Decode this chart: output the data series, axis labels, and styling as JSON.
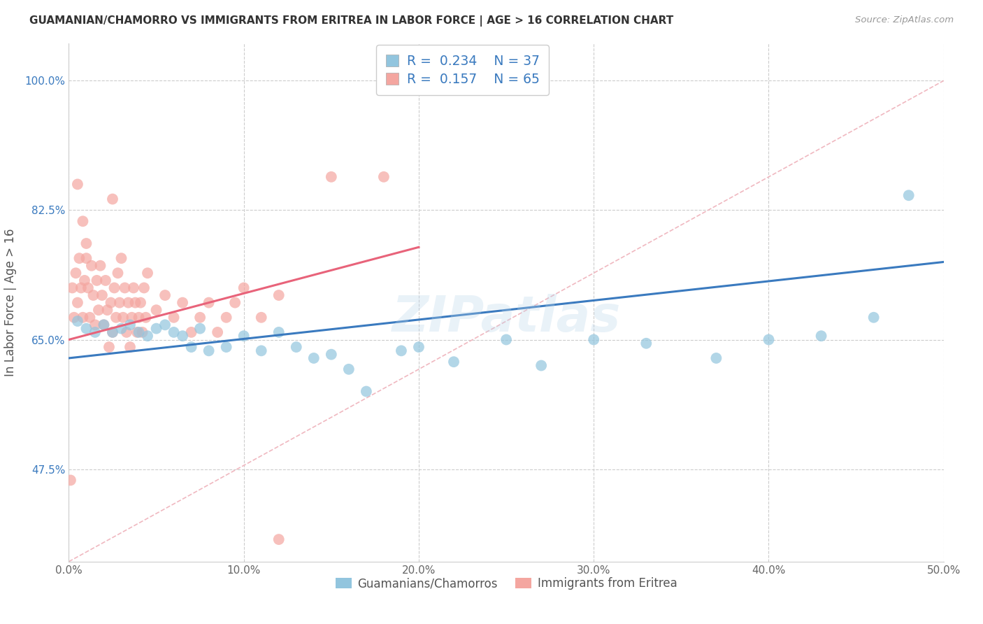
{
  "title": "GUAMANIAN/CHAMORRO VS IMMIGRANTS FROM ERITREA IN LABOR FORCE | AGE > 16 CORRELATION CHART",
  "source": "Source: ZipAtlas.com",
  "xlabel_blue": "Guamanians/Chamorros",
  "xlabel_pink": "Immigrants from Eritrea",
  "ylabel": "In Labor Force | Age > 16",
  "xmin": 0.0,
  "xmax": 0.5,
  "ymin": 0.35,
  "ymax": 1.05,
  "yticks": [
    0.475,
    0.65,
    0.825,
    1.0
  ],
  "ytick_labels": [
    "47.5%",
    "65.0%",
    "82.5%",
    "100.0%"
  ],
  "xticks": [
    0.0,
    0.1,
    0.2,
    0.3,
    0.4,
    0.5
  ],
  "xtick_labels": [
    "0.0%",
    "10.0%",
    "20.0%",
    "30.0%",
    "40.0%",
    "50.0%"
  ],
  "R_blue": 0.234,
  "N_blue": 37,
  "R_pink": 0.157,
  "N_pink": 65,
  "blue_color": "#92c5de",
  "pink_color": "#f4a6a0",
  "blue_line_color": "#3a7abf",
  "pink_line_color": "#e8637a",
  "diag_line_color": "#f0b8c0",
  "watermark": "ZIPatlas",
  "blue_x": [
    0.005,
    0.01,
    0.015,
    0.02,
    0.025,
    0.03,
    0.035,
    0.04,
    0.045,
    0.05,
    0.055,
    0.06,
    0.065,
    0.07,
    0.075,
    0.08,
    0.09,
    0.1,
    0.11,
    0.12,
    0.13,
    0.14,
    0.15,
    0.16,
    0.17,
    0.19,
    0.2,
    0.22,
    0.25,
    0.27,
    0.3,
    0.33,
    0.37,
    0.4,
    0.43,
    0.46,
    0.48
  ],
  "blue_y": [
    0.675,
    0.665,
    0.66,
    0.67,
    0.66,
    0.665,
    0.67,
    0.66,
    0.655,
    0.665,
    0.67,
    0.66,
    0.655,
    0.64,
    0.665,
    0.635,
    0.64,
    0.655,
    0.635,
    0.66,
    0.64,
    0.625,
    0.63,
    0.61,
    0.58,
    0.635,
    0.64,
    0.62,
    0.65,
    0.615,
    0.65,
    0.645,
    0.625,
    0.65,
    0.655,
    0.68,
    0.845
  ],
  "pink_x": [
    0.001,
    0.002,
    0.003,
    0.004,
    0.005,
    0.006,
    0.007,
    0.008,
    0.009,
    0.01,
    0.011,
    0.012,
    0.013,
    0.014,
    0.015,
    0.016,
    0.017,
    0.018,
    0.019,
    0.02,
    0.021,
    0.022,
    0.023,
    0.024,
    0.025,
    0.026,
    0.027,
    0.028,
    0.029,
    0.03,
    0.031,
    0.032,
    0.033,
    0.034,
    0.035,
    0.036,
    0.037,
    0.038,
    0.039,
    0.04,
    0.041,
    0.042,
    0.043,
    0.044,
    0.045,
    0.05,
    0.055,
    0.06,
    0.065,
    0.07,
    0.075,
    0.08,
    0.085,
    0.09,
    0.095,
    0.1,
    0.11,
    0.12,
    0.15,
    0.18,
    0.008,
    0.01,
    0.025,
    0.005,
    0.12
  ],
  "pink_y": [
    0.46,
    0.72,
    0.68,
    0.74,
    0.7,
    0.76,
    0.72,
    0.68,
    0.73,
    0.76,
    0.72,
    0.68,
    0.75,
    0.71,
    0.67,
    0.73,
    0.69,
    0.75,
    0.71,
    0.67,
    0.73,
    0.69,
    0.64,
    0.7,
    0.66,
    0.72,
    0.68,
    0.74,
    0.7,
    0.76,
    0.68,
    0.72,
    0.66,
    0.7,
    0.64,
    0.68,
    0.72,
    0.7,
    0.66,
    0.68,
    0.7,
    0.66,
    0.72,
    0.68,
    0.74,
    0.69,
    0.71,
    0.68,
    0.7,
    0.66,
    0.68,
    0.7,
    0.66,
    0.68,
    0.7,
    0.72,
    0.68,
    0.71,
    0.87,
    0.87,
    0.81,
    0.78,
    0.84,
    0.86,
    0.38
  ],
  "blue_trend_x": [
    0.0,
    0.5
  ],
  "blue_trend_y": [
    0.625,
    0.755
  ],
  "pink_trend_x": [
    0.0,
    0.2
  ],
  "pink_trend_y": [
    0.65,
    0.775
  ]
}
